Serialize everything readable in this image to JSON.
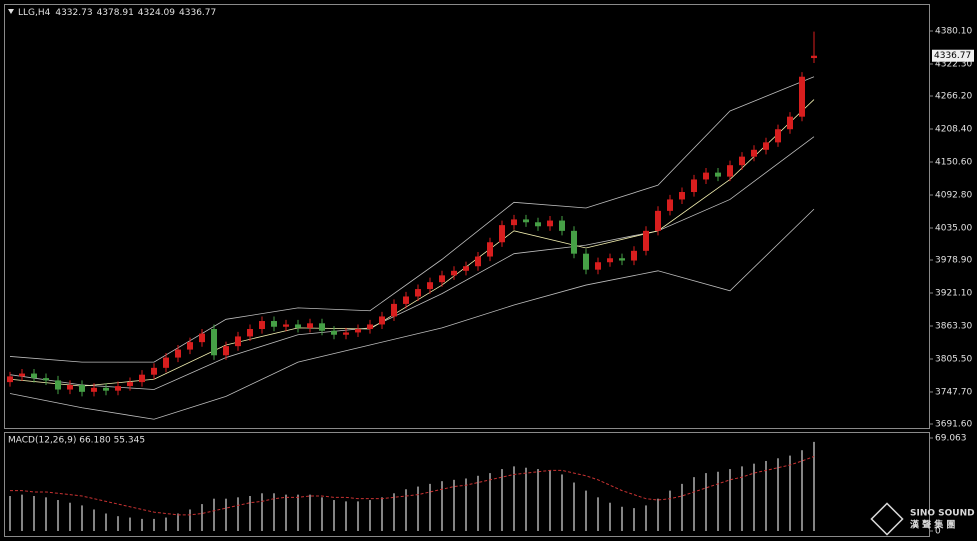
{
  "chart_data": [
    {
      "type": "candlestick",
      "title": "LLG,H4",
      "up_color": "#d81e1e",
      "down_color": "#46a046",
      "open": [
        3765,
        3775,
        3780,
        3772,
        3768,
        3752,
        3760,
        3748,
        3755,
        3750,
        3758,
        3765,
        3778,
        3790,
        3808,
        3822,
        3835,
        3858,
        3812,
        3828,
        3845,
        3858,
        3872,
        3862,
        3866,
        3860,
        3868,
        3855,
        3848,
        3852,
        3858,
        3866,
        3880,
        3902,
        3915,
        3928,
        3940,
        3952,
        3960,
        3968,
        3985,
        4010,
        4040,
        4050,
        4045,
        4038,
        4048,
        4030,
        3990,
        3962,
        3975,
        3982,
        3978,
        3995,
        4030,
        4065,
        4085,
        4098,
        4120,
        4132,
        4125,
        4145,
        4160,
        4172,
        4185,
        4208,
        4230,
        4332.73
      ],
      "high": [
        3783,
        3788,
        3788,
        3780,
        3776,
        3768,
        3768,
        3763,
        3763,
        3766,
        3773,
        3786,
        3798,
        3816,
        3830,
        3843,
        3858,
        3866,
        3836,
        3853,
        3866,
        3880,
        3880,
        3874,
        3874,
        3876,
        3876,
        3863,
        3860,
        3866,
        3874,
        3888,
        3910,
        3923,
        3936,
        3948,
        3960,
        3968,
        3976,
        3993,
        4018,
        4048,
        4058,
        4058,
        4053,
        4056,
        4056,
        4038,
        3998,
        3983,
        3990,
        3990,
        4003,
        4038,
        4073,
        4093,
        4106,
        4128,
        4140,
        4140,
        4153,
        4168,
        4180,
        4193,
        4216,
        4238,
        4308,
        4378.91
      ],
      "low": [
        3757,
        3767,
        3764,
        3760,
        3744,
        3744,
        3740,
        3740,
        3742,
        3742,
        3750,
        3757,
        3770,
        3782,
        3800,
        3814,
        3827,
        3804,
        3804,
        3820,
        3837,
        3850,
        3854,
        3854,
        3852,
        3852,
        3847,
        3840,
        3840,
        3844,
        3850,
        3858,
        3872,
        3894,
        3907,
        3920,
        3932,
        3944,
        3952,
        3960,
        3977,
        4002,
        4032,
        4037,
        4030,
        4030,
        4022,
        3982,
        3954,
        3954,
        3967,
        3970,
        3970,
        3987,
        4022,
        4057,
        4077,
        4090,
        4112,
        4117,
        4117,
        4137,
        4152,
        4164,
        4177,
        4200,
        4222,
        4324.09
      ],
      "close": [
        3775,
        3780,
        3772,
        3768,
        3752,
        3760,
        3748,
        3755,
        3750,
        3758,
        3765,
        3778,
        3790,
        3808,
        3822,
        3835,
        3850,
        3812,
        3828,
        3845,
        3858,
        3872,
        3862,
        3866,
        3860,
        3868,
        3855,
        3848,
        3852,
        3858,
        3866,
        3880,
        3902,
        3915,
        3928,
        3940,
        3952,
        3960,
        3968,
        3985,
        4010,
        4040,
        4050,
        4045,
        4038,
        4048,
        4030,
        3990,
        3962,
        3975,
        3982,
        3978,
        3995,
        4030,
        4065,
        4085,
        4098,
        4120,
        4132,
        4125,
        4145,
        4160,
        4172,
        4185,
        4208,
        4230,
        4300,
        4336.77
      ],
      "overlays": [
        {
          "color": "#bdbdbd",
          "index": [
            0,
            6,
            12,
            18,
            24,
            30,
            36,
            42,
            48,
            54,
            60,
            67
          ],
          "values": [
            3810,
            3800,
            3800,
            3875,
            3895,
            3890,
            3980,
            4080,
            4070,
            4110,
            4240,
            4300
          ]
        },
        {
          "color": "#bdbdbd",
          "index": [
            0,
            6,
            12,
            18,
            24,
            30,
            36,
            42,
            48,
            54,
            60,
            67
          ],
          "values": [
            3778,
            3760,
            3752,
            3808,
            3848,
            3860,
            3920,
            3990,
            4005,
            4030,
            4085,
            4195
          ]
        },
        {
          "color": "#bdbdbd",
          "index": [
            0,
            6,
            12,
            18,
            24,
            30,
            36,
            42,
            48,
            54,
            60,
            67
          ],
          "values": [
            3745,
            3720,
            3700,
            3740,
            3800,
            3830,
            3860,
            3900,
            3935,
            3960,
            3925,
            4068
          ]
        },
        {
          "color": "#f3f0b0",
          "index": [
            0,
            6,
            12,
            18,
            24,
            30,
            36,
            42,
            48,
            54,
            60,
            67
          ],
          "values": [
            3770,
            3758,
            3770,
            3830,
            3860,
            3858,
            3935,
            4030,
            4000,
            4030,
            4120,
            4260
          ]
        }
      ],
      "ylim": [
        3684.6,
        4427.4
      ],
      "yticks": [
        {
          "value": 4380.1,
          "label": "4380.10"
        },
        {
          "value": 4322.3,
          "label": "4322.30"
        },
        {
          "value": 4266.2,
          "label": "4266.20"
        },
        {
          "value": 4208.4,
          "label": "4208.40"
        },
        {
          "value": 4150.6,
          "label": "4150.60"
        },
        {
          "value": 4092.8,
          "label": "4092.80"
        },
        {
          "value": 4035,
          "label": "4035.00"
        },
        {
          "value": 3978.9,
          "label": "3978.90"
        },
        {
          "value": 3921.1,
          "label": "3921.10"
        },
        {
          "value": 3863.3,
          "label": "3863.30"
        },
        {
          "value": 3805.5,
          "label": "3805.50"
        },
        {
          "value": 3747.7,
          "label": "3747.70"
        },
        {
          "value": 3691.6,
          "label": "3691.60"
        }
      ]
    },
    {
      "type": "bar",
      "title": "MACD(12,26,9) 66.180 55.345",
      "color": "#dcdcdc",
      "values": [
        26,
        27,
        26,
        25,
        23,
        21,
        19,
        16,
        13,
        11,
        10,
        9,
        9,
        10,
        13,
        16,
        20,
        24,
        24,
        25,
        26,
        28,
        28,
        27,
        27,
        27,
        25,
        23,
        22,
        22,
        23,
        25,
        28,
        31,
        33,
        35,
        37,
        38,
        39,
        41,
        43,
        46,
        48,
        47,
        46,
        45,
        42,
        36,
        30,
        25,
        21,
        18,
        17,
        19,
        24,
        30,
        35,
        40,
        43,
        44,
        46,
        48,
        50,
        52,
        54,
        56,
        60,
        66.18
      ],
      "signal": {
        "color": "#c83232",
        "values": [
          30,
          30,
          29,
          29,
          28,
          27,
          26,
          24,
          22,
          20,
          18,
          16,
          14,
          13,
          12,
          12,
          13,
          15,
          17,
          19,
          21,
          22,
          24,
          25,
          25,
          26,
          26,
          25,
          25,
          24,
          24,
          24,
          25,
          26,
          27,
          29,
          31,
          33,
          34,
          36,
          38,
          40,
          42,
          43,
          44,
          45,
          45,
          43,
          41,
          38,
          34,
          30,
          27,
          24,
          23,
          24,
          26,
          29,
          32,
          35,
          38,
          40,
          43,
          45,
          47,
          49,
          52,
          55.345
        ]
      },
      "ylim": [
        0,
        69.063
      ],
      "yticks": [
        69.063,
        0
      ]
    }
  ],
  "watermark": {
    "brand": "SINO SOUND",
    "native": "漢 聲 集 團"
  }
}
